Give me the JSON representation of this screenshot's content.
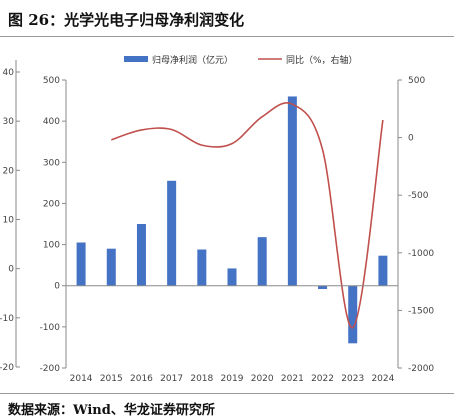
{
  "figure": {
    "title": "图 26：光学光电子归母净利润变化",
    "source": "数据来源：Wind、华龙证券研究所"
  },
  "chart_data": {
    "type": "bar",
    "categories": [
      "2014",
      "2015",
      "2016",
      "2017",
      "2018",
      "2019",
      "2020",
      "2021",
      "2022",
      "2023",
      "2024"
    ],
    "series": [
      {
        "name": "归母净利润（亿元）",
        "type": "bar",
        "axis": "left",
        "color": "#4472C4",
        "values": [
          105,
          90,
          150,
          255,
          88,
          42,
          118,
          460,
          -8,
          -140,
          73
        ]
      },
      {
        "name": "同比（%，右轴）",
        "type": "line",
        "axis": "right",
        "color": "#C0504D",
        "values": [
          null,
          -20,
          67,
          70,
          -65,
          -52,
          181,
          290,
          -102,
          -1650,
          153
        ]
      }
    ],
    "y_left": {
      "min": -200,
      "max": 500,
      "ticks": [
        -200,
        -100,
        0,
        100,
        200,
        300,
        400,
        500
      ]
    },
    "y_right": {
      "min": -2000,
      "max": 500,
      "ticks": [
        -2000,
        -1500,
        -1000,
        -500,
        0,
        500
      ]
    },
    "y_outer": {
      "ticks": [
        -20,
        -10,
        0,
        10,
        20,
        30,
        40
      ]
    },
    "legend_position": "top-center",
    "grid": false
  }
}
